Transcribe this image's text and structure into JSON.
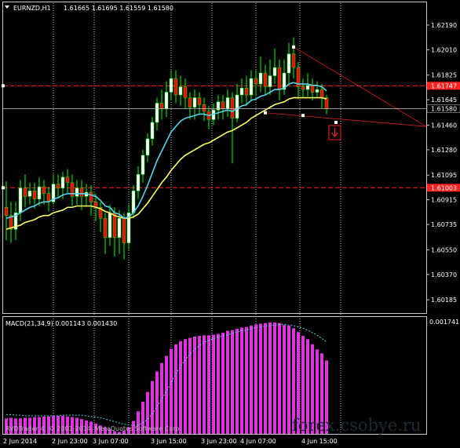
{
  "chart_data": {
    "type": "candlestick",
    "symbol_label": "EURNZD,H1",
    "ohlc_label": "1.61665 1.61695 1.61559 1.61580",
    "y_ticks": [
      "1.62190",
      "1.62010",
      "1.61825",
      "1.61645",
      "1.61460",
      "1.61280",
      "1.61095",
      "1.60915",
      "1.60735",
      "1.60550",
      "1.60370",
      "1.60185"
    ],
    "y_range": [
      1.601,
      1.6235
    ],
    "x_ticks": [
      "2 Jun 2014",
      "2 Jun 23:00",
      "3 Jun 07:00",
      "3 Jun 15:00",
      "3 Jun 23:00",
      "4 Jun 07:00",
      "4 Jun 15:00"
    ],
    "current_price": 1.6158,
    "current_price_label": "1.61580",
    "levels": [
      {
        "value": 1.61747,
        "label": "1.61747",
        "color": "#ff2020"
      },
      {
        "value": 1.61003,
        "label": "1.61003",
        "color": "#ff2020"
      }
    ],
    "candles": [
      [
        1.6086,
        1.608,
        1.6105,
        1.6062
      ],
      [
        1.608,
        1.607,
        1.609,
        1.606
      ],
      [
        1.607,
        1.6082,
        1.609,
        1.6062
      ],
      [
        1.6082,
        1.61,
        1.6106,
        1.6076
      ],
      [
        1.61,
        1.6094,
        1.611,
        1.6086
      ],
      [
        1.6094,
        1.6098,
        1.6104,
        1.6088
      ],
      [
        1.6098,
        1.6092,
        1.6104,
        1.6085
      ],
      [
        1.6092,
        1.6101,
        1.6108,
        1.6087
      ],
      [
        1.6101,
        1.6096,
        1.6106,
        1.6088
      ],
      [
        1.6096,
        1.609,
        1.6101,
        1.6083
      ],
      [
        1.609,
        1.6103,
        1.611,
        1.6088
      ],
      [
        1.6103,
        1.61,
        1.611,
        1.6093
      ],
      [
        1.61,
        1.6108,
        1.6112,
        1.6092
      ],
      [
        1.6108,
        1.6104,
        1.6114,
        1.6096
      ],
      [
        1.6104,
        1.6094,
        1.611,
        1.6087
      ],
      [
        1.6094,
        1.61,
        1.6106,
        1.6088
      ],
      [
        1.61,
        1.6094,
        1.6106,
        1.6084
      ],
      [
        1.6094,
        1.6097,
        1.6103,
        1.6086
      ],
      [
        1.6097,
        1.609,
        1.6102,
        1.608
      ],
      [
        1.609,
        1.6086,
        1.6096,
        1.6076
      ],
      [
        1.6086,
        1.6078,
        1.609,
        1.6068
      ],
      [
        1.6078,
        1.6064,
        1.6082,
        1.6052
      ],
      [
        1.6064,
        1.6082,
        1.6088,
        1.6058
      ],
      [
        1.6082,
        1.6064,
        1.6086,
        1.605
      ],
      [
        1.6064,
        1.6078,
        1.6084,
        1.6052
      ],
      [
        1.6078,
        1.606,
        1.6082,
        1.6048
      ],
      [
        1.606,
        1.6082,
        1.6088,
        1.6055
      ],
      [
        1.6082,
        1.6098,
        1.6102,
        1.6078
      ],
      [
        1.6098,
        1.611,
        1.6116,
        1.6092
      ],
      [
        1.611,
        1.6124,
        1.6128,
        1.6104
      ],
      [
        1.6124,
        1.6136,
        1.614,
        1.6119
      ],
      [
        1.6136,
        1.6148,
        1.6152,
        1.6131
      ],
      [
        1.6148,
        1.6162,
        1.6166,
        1.6142
      ],
      [
        1.6162,
        1.6158,
        1.6172,
        1.615
      ],
      [
        1.6158,
        1.617,
        1.6178,
        1.6152
      ],
      [
        1.617,
        1.618,
        1.6186,
        1.6164
      ],
      [
        1.618,
        1.6168,
        1.6186,
        1.6162
      ],
      [
        1.6168,
        1.6174,
        1.6182,
        1.616
      ],
      [
        1.6174,
        1.6166,
        1.618,
        1.6158
      ],
      [
        1.6166,
        1.6159,
        1.617,
        1.615
      ],
      [
        1.6159,
        1.6166,
        1.6172,
        1.615
      ],
      [
        1.6166,
        1.6161,
        1.617,
        1.6154
      ],
      [
        1.6161,
        1.6156,
        1.6166,
        1.6149
      ],
      [
        1.6156,
        1.615,
        1.616,
        1.6143
      ],
      [
        1.615,
        1.6157,
        1.6162,
        1.6146
      ],
      [
        1.6157,
        1.6163,
        1.6168,
        1.615
      ],
      [
        1.6163,
        1.6158,
        1.6168,
        1.615
      ],
      [
        1.6158,
        1.6166,
        1.6172,
        1.6152
      ],
      [
        1.6166,
        1.6151,
        1.617,
        1.6118
      ],
      [
        1.6151,
        1.6168,
        1.6176,
        1.6148
      ],
      [
        1.6168,
        1.6173,
        1.618,
        1.6162
      ],
      [
        1.6173,
        1.6168,
        1.6182,
        1.616
      ],
      [
        1.6168,
        1.618,
        1.6186,
        1.6164
      ],
      [
        1.618,
        1.6176,
        1.6186,
        1.6167
      ],
      [
        1.6176,
        1.6184,
        1.6196,
        1.617
      ],
      [
        1.6184,
        1.6174,
        1.619,
        1.6168
      ],
      [
        1.6174,
        1.6182,
        1.6194,
        1.6168
      ],
      [
        1.6182,
        1.6188,
        1.6202,
        1.6176
      ],
      [
        1.6188,
        1.6172,
        1.6194,
        1.6164
      ],
      [
        1.6172,
        1.6184,
        1.6194,
        1.6168
      ],
      [
        1.6184,
        1.6198,
        1.6206,
        1.6176
      ],
      [
        1.6198,
        1.6188,
        1.621,
        1.618
      ],
      [
        1.6188,
        1.6174,
        1.6192,
        1.6165
      ],
      [
        1.6174,
        1.6172,
        1.618,
        1.6166
      ],
      [
        1.6172,
        1.6175,
        1.6184,
        1.6167
      ],
      [
        1.6175,
        1.617,
        1.618,
        1.6164
      ],
      [
        1.617,
        1.6172,
        1.6178,
        1.6166
      ],
      [
        1.6172,
        1.6166,
        1.6176,
        1.6158
      ],
      [
        1.6166,
        1.6158,
        1.6168,
        1.6154
      ]
    ],
    "ema_fast": [
      1.6078,
      1.6079,
      1.608,
      1.6082,
      1.6084,
      1.6086,
      1.6087,
      1.6089,
      1.609,
      1.609,
      1.6092,
      1.6093,
      1.6095,
      1.6096,
      1.6096,
      1.6096,
      1.6096,
      1.6096,
      1.6095,
      1.6094,
      1.6091,
      1.6087,
      1.6086,
      1.6082,
      1.6081,
      1.6078,
      1.6079,
      1.6082,
      1.6087,
      1.6094,
      1.6102,
      1.6111,
      1.612,
      1.6127,
      1.6134,
      1.6141,
      1.6145,
      1.6149,
      1.6151,
      1.6152,
      1.6153,
      1.6154,
      1.6154,
      1.6153,
      1.6154,
      1.6155,
      1.6156,
      1.6157,
      1.6156,
      1.6158,
      1.616,
      1.6161,
      1.6164,
      1.6165,
      1.6167,
      1.6168,
      1.617,
      1.6172,
      1.6172,
      1.6173,
      1.6176,
      1.6177,
      1.6176,
      1.6176,
      1.6176,
      1.6175,
      1.6175,
      1.6174,
      1.6171
    ],
    "ema_slow": [
      1.607,
      1.6071,
      1.6072,
      1.6073,
      1.6075,
      1.6076,
      1.6077,
      1.6079,
      1.608,
      1.608,
      1.6082,
      1.6083,
      1.6084,
      1.6086,
      1.6086,
      1.6087,
      1.6087,
      1.6087,
      1.6087,
      1.6086,
      1.6085,
      1.6083,
      1.6082,
      1.608,
      1.6079,
      1.6078,
      1.6078,
      1.6079,
      1.6081,
      1.6085,
      1.6089,
      1.6094,
      1.6099,
      1.6104,
      1.6108,
      1.6113,
      1.6117,
      1.6121,
      1.6124,
      1.6126,
      1.6128,
      1.613,
      1.6132,
      1.6133,
      1.6135,
      1.6137,
      1.6139,
      1.6141,
      1.6142,
      1.6144,
      1.6146,
      1.6148,
      1.6151,
      1.6153,
      1.6155,
      1.6157,
      1.6159,
      1.6161,
      1.6162,
      1.6163,
      1.6165,
      1.6166,
      1.6166,
      1.6166,
      1.6166,
      1.6166,
      1.6166,
      1.6166,
      1.6165
    ],
    "macd": {
      "label": "MACD(21,34,9) 0.001143 0.001430",
      "y_tick": "0.001741",
      "y_range": [
        0,
        0.001741
      ],
      "histogram": [
        0.00024,
        0.00025,
        0.00024,
        0.00024,
        0.00025,
        0.00025,
        0.00026,
        0.00026,
        0.00027,
        0.00027,
        0.00028,
        0.00028,
        0.00028,
        0.00027,
        0.00026,
        0.00025,
        0.00023,
        0.00021,
        0.00019,
        0.00016,
        0.00013,
        0.0001,
        7e-05,
        4e-05,
        3e-05,
        5e-05,
        0.0001,
        0.0002,
        0.00035,
        0.0005,
        0.00065,
        0.00082,
        0.00097,
        0.0011,
        0.00121,
        0.00132,
        0.00139,
        0.00144,
        0.00147,
        0.00149,
        0.00151,
        0.00152,
        0.00153,
        0.00153,
        0.00154,
        0.00155,
        0.00157,
        0.0016,
        0.00161,
        0.00163,
        0.00165,
        0.00166,
        0.00168,
        0.0017,
        0.00171,
        0.00172,
        0.00173,
        0.00173,
        0.00172,
        0.00169,
        0.00168,
        0.00164,
        0.00158,
        0.00152,
        0.00147,
        0.00139,
        0.00131,
        0.00125,
        0.00114
      ],
      "signal": [
        0.0003,
        0.0003,
        0.00029,
        0.00029,
        0.00028,
        0.00028,
        0.00028,
        0.00028,
        0.00028,
        0.00028,
        0.00028,
        0.00028,
        0.00029,
        0.00029,
        0.00029,
        0.00029,
        0.00029,
        0.00028,
        0.00027,
        0.00026,
        0.00025,
        0.00023,
        0.00021,
        0.00019,
        0.00017,
        0.00015,
        0.00014,
        0.00013,
        0.00014,
        0.00017,
        0.00023,
        0.00031,
        0.00042,
        0.00054,
        0.00066,
        0.0008,
        0.00093,
        0.00105,
        0.00115,
        0.00124,
        0.00131,
        0.00137,
        0.00142,
        0.00145,
        0.00148,
        0.0015,
        0.00152,
        0.00154,
        0.00156,
        0.00158,
        0.0016,
        0.00161,
        0.00163,
        0.00165,
        0.00166,
        0.00167,
        0.00168,
        0.00169,
        0.0017,
        0.0017,
        0.00169,
        0.00168,
        0.00166,
        0.00164,
        0.00161,
        0.00157,
        0.00153,
        0.00148,
        0.00143
      ]
    },
    "colors": {
      "bull": "#ffffff",
      "bear": "#ff0000",
      "wick": "#00ff00",
      "ema_fast": "#55d4ee",
      "ema_slow": "#ffff66",
      "macd": "#e033e0",
      "signal": "#55d4ee",
      "grid": "#c8c8c8",
      "level": "#ff2020",
      "trend": "#e02020",
      "current": "#c8c8c8"
    }
  },
  "footer_copyright": "RVDTrader 4, © 2001-2014, MetaQuotes Software Corp.",
  "watermark": "forex.csobye.ru"
}
